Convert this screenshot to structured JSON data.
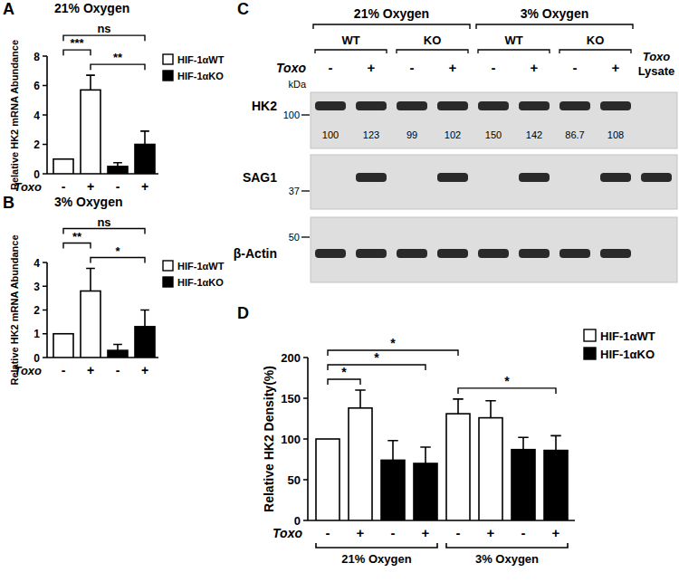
{
  "chart_data": [
    {
      "type": "bar",
      "panel_label": "A",
      "title": "21% Oxygen",
      "y_label": "Relative HK2 mRNA Abundance",
      "x_label": "Toxo",
      "categories": [
        "-",
        "+",
        "-",
        "+"
      ],
      "series": [
        {
          "name": "HIF-1αWT",
          "color": "#ffffff",
          "values": [
            1,
            5.7,
            null,
            null
          ],
          "errors": [
            null,
            1.0,
            null,
            null
          ]
        },
        {
          "name": "HIF-1αKO",
          "color": "#000000",
          "values": [
            null,
            null,
            0.5,
            2.0
          ],
          "errors": [
            null,
            null,
            0.25,
            0.9
          ]
        }
      ],
      "ylim": [
        0,
        8
      ],
      "yticks": [
        0,
        2,
        4,
        6,
        8
      ],
      "legend": "upper right",
      "annotations": [
        {
          "between": [
            1,
            3
          ],
          "label": "**"
        },
        {
          "between": [
            0,
            1
          ],
          "label": "***"
        },
        {
          "between": [
            0,
            3
          ],
          "label": "ns"
        }
      ]
    },
    {
      "type": "bar",
      "panel_label": "B",
      "title": "3% Oxygen",
      "y_label": "Relative HK2 mRNA Abundance",
      "x_label": "Toxo",
      "categories": [
        "-",
        "+",
        "-",
        "+"
      ],
      "series": [
        {
          "name": "HIF-1αWT",
          "color": "#ffffff",
          "values": [
            1,
            2.8,
            null,
            null
          ],
          "errors": [
            null,
            0.95,
            null,
            null
          ]
        },
        {
          "name": "HIF-1αKO",
          "color": "#000000",
          "values": [
            null,
            null,
            0.3,
            1.3
          ],
          "errors": [
            null,
            null,
            0.25,
            0.7
          ]
        }
      ],
      "ylim": [
        0,
        4
      ],
      "yticks": [
        0,
        1,
        2,
        3,
        4
      ],
      "legend": "upper right",
      "annotations": [
        {
          "between": [
            1,
            3
          ],
          "label": "*"
        },
        {
          "between": [
            0,
            1
          ],
          "label": "**"
        },
        {
          "between": [
            0,
            3
          ],
          "label": "ns"
        }
      ]
    },
    {
      "type": "blot",
      "panel_label": "C",
      "column_groups": [
        {
          "label": "21% Oxygen",
          "between": [
            0,
            3
          ]
        },
        {
          "label": "3% Oxygen",
          "between": [
            4,
            7
          ]
        }
      ],
      "genotype_groups": [
        {
          "label": "WT",
          "between": [
            0,
            1
          ]
        },
        {
          "label": "KO",
          "between": [
            2,
            3
          ]
        },
        {
          "label": "WT",
          "between": [
            4,
            5
          ]
        },
        {
          "label": "KO",
          "between": [
            6,
            7
          ]
        }
      ],
      "x_label": "Toxo",
      "lanes": [
        "-",
        "+",
        "-",
        "+",
        "-",
        "+",
        "-",
        "+",
        null
      ],
      "extra_lane": [
        "Toxo",
        "Lysate"
      ],
      "marker_unit": "kDa",
      "rows": [
        {
          "label": "HK2",
          "kda_marker": 100,
          "bands": [
            true,
            true,
            true,
            true,
            true,
            true,
            true,
            true,
            false
          ],
          "densities": [
            100,
            123,
            99,
            102,
            150,
            142,
            86.7,
            108
          ]
        },
        {
          "label": "SAG1",
          "kda_marker": 37,
          "bands": [
            false,
            true,
            false,
            true,
            false,
            true,
            false,
            true,
            true
          ]
        },
        {
          "label": "β-Actin",
          "kda_marker": 50,
          "bands": [
            true,
            true,
            true,
            true,
            true,
            true,
            true,
            true,
            false
          ]
        }
      ]
    },
    {
      "type": "bar",
      "panel_label": "D",
      "y_label": "Relative HK2 Density(%)",
      "x_label": "Toxo",
      "categories": [
        "-",
        "+",
        "-",
        "+",
        "-",
        "+",
        "-",
        "+"
      ],
      "series": [
        {
          "name": "HIF-1αWT",
          "color": "#ffffff",
          "values": [
            100,
            138,
            null,
            null,
            131,
            126,
            null,
            null
          ],
          "errors": [
            null,
            22,
            null,
            null,
            18,
            21,
            null,
            null
          ]
        },
        {
          "name": "HIF-1αKO",
          "color": "#000000",
          "values": [
            null,
            null,
            74,
            70,
            null,
            null,
            87,
            86
          ],
          "errors": [
            null,
            null,
            24,
            20,
            null,
            null,
            15,
            18
          ]
        }
      ],
      "ylim": [
        0,
        200
      ],
      "yticks": [
        0,
        50,
        100,
        150,
        200
      ],
      "legend": "upper right",
      "groups": [
        {
          "label": "21% Oxygen",
          "between": [
            0,
            3
          ]
        },
        {
          "label": "3% Oxygen",
          "between": [
            4,
            7
          ]
        }
      ],
      "annotations": [
        {
          "between": [
            0,
            1
          ],
          "label": "*"
        },
        {
          "between": [
            4,
            7
          ],
          "label": "*"
        },
        {
          "between": [
            0,
            3
          ],
          "label": "*"
        },
        {
          "between": [
            0,
            4
          ],
          "label": "*"
        }
      ]
    }
  ]
}
